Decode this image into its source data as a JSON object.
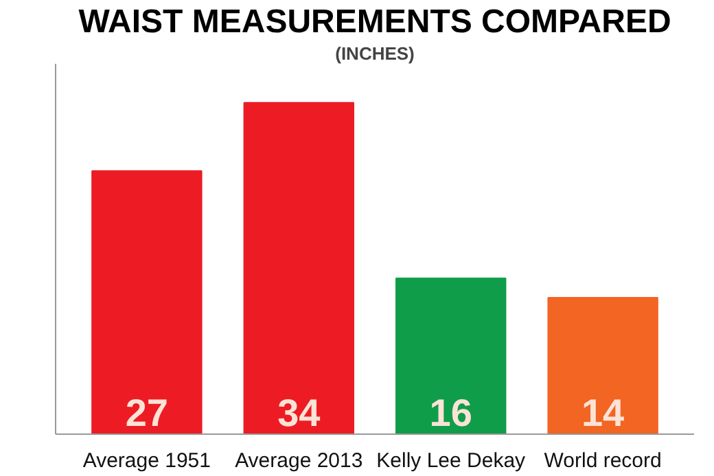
{
  "chart_data": {
    "type": "bar",
    "title": "WAIST MEASUREMENTS COMPARED",
    "subtitle": "(INCHES)",
    "categories": [
      "Average 1951",
      "Average 2013",
      "Kelly Lee Dekay",
      "World record"
    ],
    "values": [
      27,
      34,
      16,
      14
    ],
    "colors": [
      "#ed1c24",
      "#ed1c24",
      "#0f9d4a",
      "#f26522"
    ],
    "ylim": [
      0,
      38
    ],
    "data_labels": true,
    "grid": false
  }
}
